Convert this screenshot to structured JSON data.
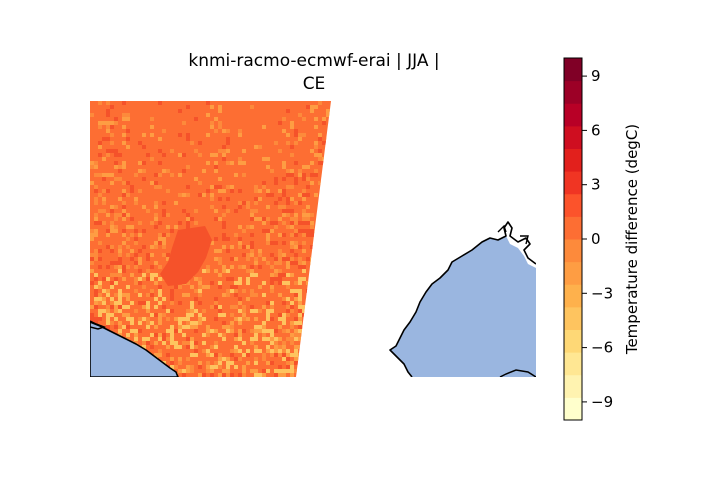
{
  "title": {
    "line1": "knmi-racmo-ecmwf-erai | JJA |",
    "line2": "CE"
  },
  "map": {
    "variable": "temperature difference",
    "land_color": "#ffffff",
    "ocean_color": "#9ab6e0",
    "coastline_color": "#000000"
  },
  "colorbar": {
    "label": "Temperature difference (degC)",
    "range": [
      -10,
      10
    ],
    "ticks": [
      -9,
      -6,
      -3,
      0,
      3,
      6,
      9
    ],
    "tick_labels": [
      "−9",
      "−6",
      "−3",
      "0",
      "3",
      "6",
      "9"
    ],
    "colormap": "YlOrRd",
    "colors": [
      "#ffffcc",
      "#fff3b0",
      "#ffe793",
      "#fed876",
      "#fec45f",
      "#feb14c",
      "#fe9d43",
      "#fd8a3b",
      "#fd6e33",
      "#fc532b",
      "#f03523",
      "#e2201c",
      "#cf0e20",
      "#b80026",
      "#9c0026",
      "#800026"
    ]
  }
}
